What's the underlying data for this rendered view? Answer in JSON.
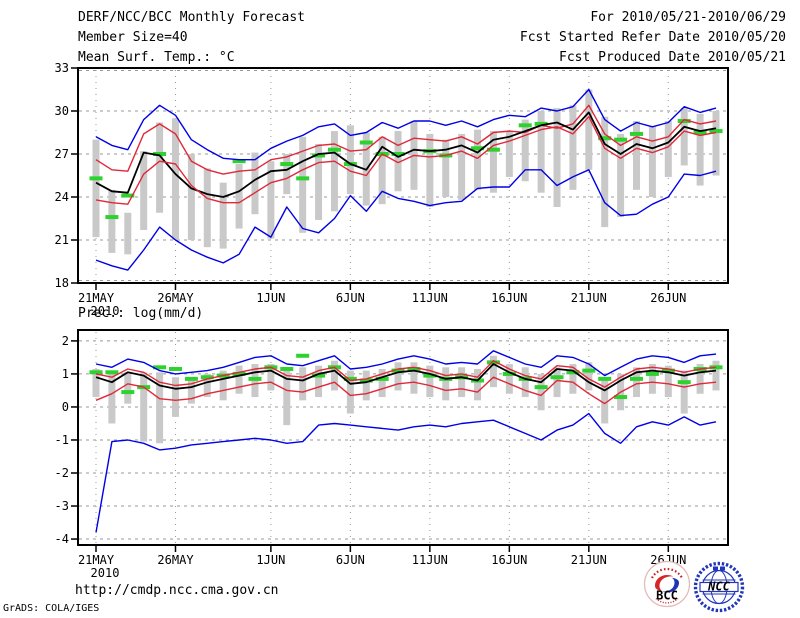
{
  "header": {
    "title": "DERF/NCC/BCC Monthly Forecast",
    "member_size": "Member Size=40",
    "temp_title": "Mean Surf. Temp.: °C",
    "valid_range": "For 2010/05/21-2010/06/29",
    "refer_date": "Fcst Started Refer Date 2010/05/20",
    "produced_date": "Fcst Produced Date 2010/05/21"
  },
  "footer": {
    "url": "http://cmdp.ncc.cma.gov.cn",
    "grads_credit": "GrADS: COLA/IGES",
    "logo_left": "BCC",
    "logo_right": "NCC"
  },
  "colors": {
    "blue": "#0000e6",
    "red": "#e02838",
    "black": "#000000",
    "green_obs": "#2ed22e",
    "spread_bar": "#c9c9c9",
    "grid": "#999999",
    "frame": "#000000"
  },
  "chart_data": [
    {
      "type": "line",
      "title": "Mean Surf. Temp.: °C",
      "ylabel": "Mean Surface Temperature (°C)",
      "ylim": [
        18,
        33
      ],
      "yticks": [
        18,
        21,
        24,
        27,
        30,
        33
      ],
      "grid": true,
      "n_days": 40,
      "x_start_date": "2010/05/21",
      "x_end_date": "2010/06/29",
      "x_tick_days": [
        0,
        5,
        11,
        16,
        21,
        26,
        31,
        36
      ],
      "x_tick_labels": [
        "21MAY",
        "26MAY",
        "1JUN",
        "6JUN",
        "11JUN",
        "16JUN",
        "21JUN",
        "26JUN"
      ],
      "x_year_label": "2010",
      "series": [
        {
          "name": "ensemble-max",
          "color": "blue",
          "values": [
            28.2,
            27.6,
            27.3,
            29.4,
            30.4,
            29.7,
            28.0,
            27.3,
            26.7,
            26.6,
            26.6,
            27.4,
            27.9,
            28.3,
            28.9,
            29.1,
            28.3,
            28.5,
            29.2,
            28.8,
            29.3,
            29.3,
            29.0,
            29.3,
            28.9,
            29.4,
            29.7,
            29.6,
            30.2,
            30.0,
            30.3,
            31.5,
            29.4,
            28.6,
            29.2,
            28.9,
            29.2,
            30.3,
            29.9,
            30.2
          ]
        },
        {
          "name": "upper-quartile",
          "color": "red",
          "values": [
            26.6,
            25.9,
            25.8,
            28.4,
            29.1,
            28.4,
            26.5,
            25.9,
            25.6,
            25.8,
            25.9,
            26.6,
            26.8,
            27.2,
            27.6,
            27.7,
            27.2,
            27.3,
            28.2,
            27.6,
            28.1,
            28.0,
            27.9,
            28.2,
            27.7,
            28.5,
            28.6,
            28.5,
            29.0,
            28.8,
            29.1,
            30.4,
            28.4,
            27.6,
            28.2,
            27.9,
            28.2,
            29.4,
            29.1,
            29.3
          ]
        },
        {
          "name": "ensemble-mean",
          "color": "black",
          "values": [
            25.0,
            24.4,
            24.3,
            27.1,
            26.9,
            25.6,
            24.6,
            24.2,
            24.0,
            24.4,
            25.2,
            25.8,
            25.9,
            26.5,
            27.0,
            27.1,
            26.3,
            25.9,
            27.5,
            26.8,
            27.3,
            27.2,
            27.3,
            27.6,
            27.1,
            28.0,
            28.2,
            28.6,
            29.0,
            29.2,
            28.7,
            29.9,
            27.7,
            27.0,
            27.7,
            27.4,
            27.8,
            28.9,
            28.6,
            28.8
          ]
        },
        {
          "name": "lower-quartile",
          "color": "red",
          "values": [
            23.8,
            23.6,
            23.5,
            25.6,
            26.5,
            26.3,
            24.8,
            23.9,
            23.6,
            23.6,
            24.3,
            25.0,
            25.3,
            25.9,
            26.4,
            26.5,
            25.8,
            25.5,
            27.0,
            26.4,
            26.9,
            26.8,
            26.9,
            27.2,
            26.7,
            27.6,
            27.9,
            28.3,
            28.7,
            28.9,
            28.4,
            29.6,
            27.4,
            26.7,
            27.4,
            27.1,
            27.5,
            28.6,
            28.3,
            28.5
          ]
        },
        {
          "name": "ensemble-min",
          "color": "blue",
          "values": [
            19.6,
            19.2,
            18.9,
            20.3,
            21.9,
            21.0,
            20.3,
            19.8,
            19.4,
            20.0,
            21.9,
            21.2,
            23.3,
            21.8,
            21.5,
            22.5,
            24.1,
            23.0,
            24.4,
            23.9,
            23.7,
            23.4,
            23.6,
            23.7,
            24.6,
            24.7,
            24.7,
            25.9,
            25.9,
            24.8,
            25.4,
            25.9,
            23.6,
            22.7,
            22.8,
            23.5,
            24.0,
            25.6,
            25.5,
            25.8
          ]
        }
      ],
      "spread_bars": [
        [
          21.2,
          28.0
        ],
        [
          20.1,
          24.5
        ],
        [
          20.0,
          22.9
        ],
        [
          21.7,
          27.2
        ],
        [
          22.9,
          29.2
        ],
        [
          21.0,
          29.5
        ],
        [
          21.0,
          27.0
        ],
        [
          20.5,
          26.0
        ],
        [
          20.4,
          25.0
        ],
        [
          21.8,
          26.3
        ],
        [
          22.8,
          27.1
        ],
        [
          21.1,
          26.5
        ],
        [
          24.2,
          27.0
        ],
        [
          21.5,
          28.2
        ],
        [
          22.4,
          27.7
        ],
        [
          23.0,
          28.6
        ],
        [
          24.2,
          29.0
        ],
        [
          23.4,
          28.5
        ],
        [
          23.5,
          28.2
        ],
        [
          24.4,
          28.6
        ],
        [
          24.5,
          29.3
        ],
        [
          23.3,
          28.4
        ],
        [
          24.0,
          28.0
        ],
        [
          23.8,
          28.4
        ],
        [
          24.5,
          28.7
        ],
        [
          24.3,
          28.6
        ],
        [
          25.4,
          28.6
        ],
        [
          25.1,
          29.4
        ],
        [
          24.3,
          30.0
        ],
        [
          23.3,
          30.2
        ],
        [
          24.5,
          30.4
        ],
        [
          25.9,
          31.5
        ],
        [
          21.9,
          29.6
        ],
        [
          22.6,
          28.4
        ],
        [
          24.5,
          29.3
        ],
        [
          24.0,
          28.9
        ],
        [
          25.4,
          29.3
        ],
        [
          26.2,
          30.2
        ],
        [
          24.8,
          29.8
        ],
        [
          25.5,
          30.0
        ]
      ],
      "obs_dashes": [
        25.3,
        22.6,
        24.1,
        null,
        27.0,
        null,
        null,
        null,
        null,
        26.5,
        null,
        null,
        26.3,
        25.3,
        26.9,
        27.3,
        26.3,
        27.8,
        27.0,
        27.0,
        null,
        27.2,
        26.9,
        null,
        27.4,
        27.3,
        null,
        29.0,
        29.1,
        null,
        null,
        null,
        28.1,
        28.0,
        28.4,
        null,
        null,
        29.3,
        28.5,
        28.6
      ]
    },
    {
      "type": "line",
      "title": "Prec.: log(mm/d)",
      "ylabel": "Precipitation log(mm/d)",
      "ylim": [
        -4.18,
        2.33
      ],
      "yticks": [
        -4,
        -3,
        -2,
        -1,
        0,
        1,
        2
      ],
      "grid": true,
      "n_days": 40,
      "x_start_date": "2010/05/21",
      "x_end_date": "2010/06/29",
      "x_tick_days": [
        0,
        5,
        11,
        16,
        21,
        26,
        31,
        36
      ],
      "x_tick_labels": [
        "21MAY",
        "26MAY",
        "1JUN",
        "6JUN",
        "11JUN",
        "16JUN",
        "21JUN",
        "26JUN"
      ],
      "x_year_label": "2010",
      "series": [
        {
          "name": "ensemble-max",
          "color": "blue",
          "values": [
            1.3,
            1.2,
            1.45,
            1.35,
            1.1,
            1.0,
            1.05,
            1.1,
            1.2,
            1.35,
            1.5,
            1.55,
            1.3,
            1.25,
            1.4,
            1.55,
            1.15,
            1.2,
            1.3,
            1.45,
            1.55,
            1.45,
            1.3,
            1.35,
            1.3,
            1.7,
            1.5,
            1.3,
            1.2,
            1.55,
            1.5,
            1.3,
            0.95,
            1.2,
            1.45,
            1.55,
            1.5,
            1.35,
            1.55,
            1.6
          ]
        },
        {
          "name": "upper-quartile",
          "color": "red",
          "values": [
            1.0,
            0.9,
            1.15,
            1.05,
            0.75,
            0.65,
            0.7,
            0.85,
            0.95,
            1.05,
            1.15,
            1.2,
            0.95,
            0.9,
            1.1,
            1.2,
            0.8,
            0.85,
            1.0,
            1.15,
            1.2,
            1.1,
            0.95,
            1.0,
            0.9,
            1.4,
            1.15,
            0.95,
            0.85,
            1.25,
            1.2,
            0.85,
            0.6,
            0.9,
            1.15,
            1.2,
            1.15,
            1.05,
            1.15,
            1.2
          ]
        },
        {
          "name": "ensemble-mean",
          "color": "black",
          "values": [
            0.9,
            0.75,
            1.05,
            0.95,
            0.65,
            0.55,
            0.6,
            0.75,
            0.85,
            0.95,
            1.05,
            1.1,
            0.85,
            0.8,
            1.0,
            1.1,
            0.7,
            0.75,
            0.9,
            1.05,
            1.1,
            1.0,
            0.85,
            0.9,
            0.8,
            1.3,
            1.05,
            0.85,
            0.75,
            1.15,
            1.1,
            0.75,
            0.5,
            0.8,
            1.05,
            1.1,
            1.05,
            0.95,
            1.05,
            1.1
          ]
        },
        {
          "name": "lower-quartile",
          "color": "red",
          "values": [
            0.2,
            0.4,
            0.7,
            0.6,
            0.25,
            0.2,
            0.25,
            0.4,
            0.5,
            0.6,
            0.7,
            0.75,
            0.5,
            0.45,
            0.6,
            0.75,
            0.35,
            0.4,
            0.55,
            0.7,
            0.75,
            0.65,
            0.5,
            0.55,
            0.45,
            0.9,
            0.7,
            0.5,
            0.35,
            0.8,
            0.75,
            0.4,
            0.1,
            0.45,
            0.7,
            0.75,
            0.7,
            0.6,
            0.7,
            0.75
          ]
        },
        {
          "name": "ensemble-min",
          "color": "blue",
          "values": [
            -3.8,
            -1.05,
            -1.0,
            -1.1,
            -1.3,
            -1.25,
            -1.15,
            -1.1,
            -1.05,
            -1.0,
            -0.95,
            -1.0,
            -1.1,
            -1.05,
            -0.55,
            -0.5,
            -0.55,
            -0.6,
            -0.65,
            -0.7,
            -0.6,
            -0.55,
            -0.6,
            -0.5,
            -0.45,
            -0.4,
            -0.6,
            -0.8,
            -1.0,
            -0.7,
            -0.55,
            -0.2,
            -0.8,
            -1.1,
            -0.6,
            -0.45,
            -0.55,
            -0.3,
            -0.55,
            -0.45
          ]
        }
      ],
      "spread_bars": [
        [
          0.3,
          1.15
        ],
        [
          -0.5,
          1.1
        ],
        [
          0.1,
          1.05
        ],
        [
          -1.05,
          1.05
        ],
        [
          -1.1,
          1.05
        ],
        [
          -0.3,
          0.9
        ],
        [
          0.1,
          0.85
        ],
        [
          0.3,
          1.0
        ],
        [
          0.2,
          1.1
        ],
        [
          0.4,
          1.25
        ],
        [
          0.3,
          1.3
        ],
        [
          0.5,
          1.3
        ],
        [
          -0.55,
          1.1
        ],
        [
          0.2,
          1.2
        ],
        [
          0.3,
          1.25
        ],
        [
          0.5,
          1.4
        ],
        [
          -0.2,
          1.1
        ],
        [
          0.2,
          1.1
        ],
        [
          0.3,
          1.15
        ],
        [
          0.5,
          1.35
        ],
        [
          0.4,
          1.35
        ],
        [
          0.3,
          1.25
        ],
        [
          0.2,
          1.2
        ],
        [
          0.3,
          1.2
        ],
        [
          0.2,
          1.15
        ],
        [
          0.6,
          1.55
        ],
        [
          0.4,
          1.3
        ],
        [
          0.3,
          1.2
        ],
        [
          -0.1,
          1.0
        ],
        [
          0.3,
          1.2
        ],
        [
          0.4,
          1.3
        ],
        [
          0.5,
          1.35
        ],
        [
          -0.5,
          0.9
        ],
        [
          -0.1,
          1.0
        ],
        [
          0.3,
          1.2
        ],
        [
          0.4,
          1.3
        ],
        [
          0.3,
          1.25
        ],
        [
          -0.2,
          1.1
        ],
        [
          0.4,
          1.3
        ],
        [
          0.5,
          1.4
        ]
      ],
      "obs_dashes": [
        1.05,
        1.05,
        0.45,
        0.6,
        1.2,
        1.15,
        0.85,
        0.9,
        0.95,
        1.0,
        0.85,
        1.2,
        1.15,
        1.55,
        0.95,
        1.2,
        0.85,
        0.8,
        0.85,
        1.1,
        1.15,
        0.95,
        0.85,
        0.9,
        0.8,
        1.35,
        1.0,
        0.85,
        0.6,
        0.9,
        1.05,
        1.1,
        0.85,
        0.3,
        0.85,
        1.0,
        1.1,
        0.75,
        1.15,
        1.2
      ]
    }
  ]
}
